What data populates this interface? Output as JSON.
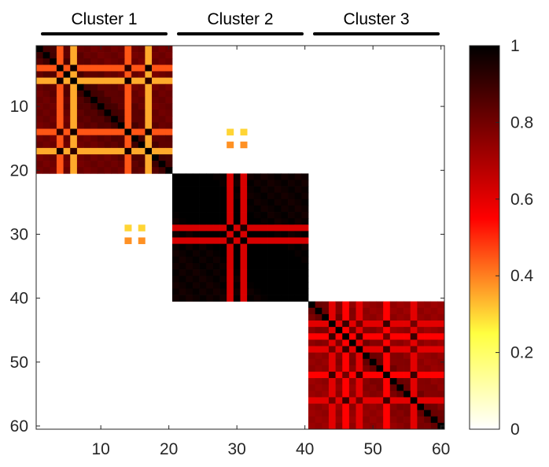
{
  "chart_data": {
    "type": "heatmap",
    "colormap": "hot (reversed)",
    "n": 60,
    "xlim": [
      0.5,
      60.5
    ],
    "ylim": [
      0.5,
      60.5
    ],
    "y_direction": "reverse",
    "x_ticks": [
      10,
      20,
      30,
      40,
      50,
      60
    ],
    "y_ticks": [
      10,
      20,
      30,
      40,
      50,
      60
    ],
    "grid": false,
    "colorbar": {
      "range": [
        0,
        1
      ],
      "ticks": [
        0,
        0.2,
        0.4,
        0.6,
        0.8,
        1
      ],
      "tick_labels": [
        "0",
        "0.2",
        "0.4",
        "0.6",
        "0.8",
        "1"
      ],
      "placement": "right"
    },
    "cluster_labels": [
      {
        "name": "Cluster 1",
        "range": [
          1,
          20
        ]
      },
      {
        "name": "Cluster 2",
        "range": [
          21,
          40
        ]
      },
      {
        "name": "Cluster 3",
        "range": [
          41,
          60
        ]
      }
    ],
    "cluster_blocks": [
      {
        "range": [
          1,
          20
        ],
        "special_indices": [
          4,
          6,
          14,
          17
        ],
        "base": 0.82,
        "special_cross_values": [
          0.45,
          0.35
        ],
        "special_pair_values": [
          0.92,
          0.97
        ]
      },
      {
        "range": [
          21,
          40
        ],
        "special_indices": [
          29,
          31
        ],
        "base": 0.99,
        "special_cross_values": [
          0.62,
          0.62
        ],
        "special_pair_values": [
          0.9,
          0.95
        ]
      },
      {
        "range": [
          41,
          60
        ],
        "special_indices": [
          44,
          46,
          48,
          52,
          56
        ],
        "base": 0.75,
        "special_cross_values": [
          0.6,
          0.55
        ],
        "special_pair_values": [
          0.8,
          0.9
        ]
      }
    ],
    "off_block_patches": [
      {
        "rows": [
          14,
          16
        ],
        "cols": [
          29,
          31
        ],
        "values": [
          [
            0.3,
            0.3
          ],
          [
            0.38,
            0.38
          ]
        ]
      },
      {
        "rows": [
          29,
          31
        ],
        "cols": [
          14,
          16
        ],
        "values": [
          [
            0.3,
            0.3
          ],
          [
            0.38,
            0.38
          ]
        ]
      }
    ]
  }
}
